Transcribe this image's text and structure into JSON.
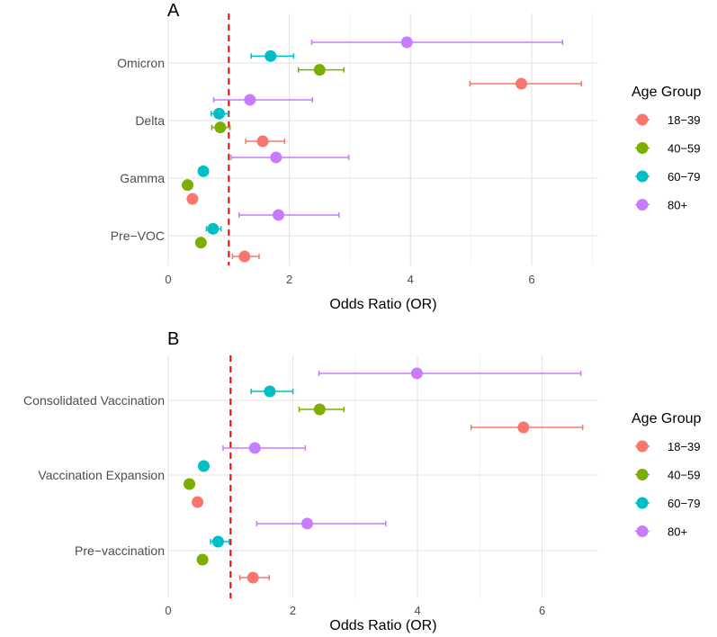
{
  "chart_data": [
    {
      "type": "scatter",
      "panel_label": "A",
      "xlabel": "Odds Ratio (OR)",
      "ylabel": "",
      "xlim": [
        0,
        7.1
      ],
      "xticks": [
        "0",
        "2",
        "4",
        "6"
      ],
      "reference_line": 1,
      "categories": [
        "Omicron",
        "Delta",
        "Gamma",
        "Pre−VOC"
      ],
      "series": [
        {
          "name": "18−39",
          "color": "#F8766D",
          "values": [
            5.83,
            1.56,
            0.4,
            1.26
          ],
          "lower": [
            4.98,
            1.28,
            0.4,
            1.06
          ],
          "upper": [
            6.82,
            1.92,
            0.4,
            1.5
          ]
        },
        {
          "name": "40−59",
          "color": "#7CAE00",
          "values": [
            2.5,
            0.86,
            0.32,
            0.54
          ],
          "lower": [
            2.15,
            0.72,
            0.32,
            0.54
          ],
          "upper": [
            2.9,
            1.02,
            0.32,
            0.54
          ]
        },
        {
          "name": "60−79",
          "color": "#00BFC4",
          "values": [
            1.69,
            0.84,
            0.58,
            0.74
          ],
          "lower": [
            1.37,
            0.71,
            0.52,
            0.63
          ],
          "upper": [
            2.07,
            0.99,
            0.64,
            0.87
          ]
        },
        {
          "name": "80+",
          "color": "#C77CFF",
          "values": [
            3.94,
            1.35,
            1.78,
            1.82
          ],
          "lower": [
            2.37,
            0.75,
            1.04,
            1.17
          ],
          "upper": [
            6.51,
            2.38,
            2.98,
            2.82
          ]
        }
      ],
      "legend": {
        "title": "Age Group",
        "position": "right"
      }
    },
    {
      "type": "scatter",
      "panel_label": "B",
      "xlabel": "Odds Ratio (OR)",
      "ylabel": "",
      "xlim": [
        0,
        6.9
      ],
      "xticks": [
        "0",
        "2",
        "4",
        "6"
      ],
      "reference_line": 1,
      "categories": [
        "Consolidated Vaccination",
        "Vaccination Expansion",
        "Pre−vaccination"
      ],
      "series": [
        {
          "name": "18−39",
          "color": "#F8766D",
          "values": [
            5.7,
            0.47,
            1.36
          ],
          "lower": [
            4.86,
            0.47,
            1.15
          ],
          "upper": [
            6.65,
            0.47,
            1.62
          ]
        },
        {
          "name": "40−59",
          "color": "#7CAE00",
          "values": [
            2.43,
            0.34,
            0.55
          ],
          "lower": [
            2.1,
            0.34,
            0.55
          ],
          "upper": [
            2.82,
            0.34,
            0.55
          ]
        },
        {
          "name": "60−79",
          "color": "#00BFC4",
          "values": [
            1.63,
            0.57,
            0.8
          ],
          "lower": [
            1.33,
            0.51,
            0.68
          ],
          "upper": [
            2.0,
            0.64,
            0.98
          ]
        },
        {
          "name": "80+",
          "color": "#C77CFF",
          "values": [
            3.99,
            1.39,
            2.23
          ],
          "lower": [
            2.42,
            0.88,
            1.42
          ],
          "upper": [
            6.62,
            2.2,
            3.49
          ]
        }
      ],
      "legend": {
        "title": "Age Group",
        "position": "right"
      }
    }
  ]
}
